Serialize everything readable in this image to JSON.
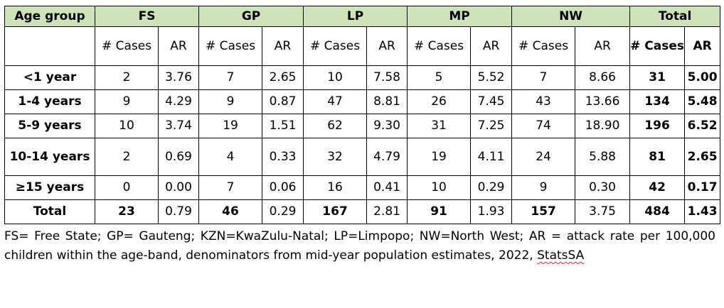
{
  "table": {
    "header": {
      "age_group": "Age group",
      "provinces": [
        "FS",
        "GP",
        "LP",
        "MP",
        "NW"
      ],
      "total": "Total",
      "cases_label": "# Cases",
      "ar_label": "AR"
    },
    "rows": [
      {
        "label": "<1 year",
        "tall": false,
        "values": [
          "2",
          "3.76",
          "7",
          "2.65",
          "10",
          "7.58",
          "5",
          "5.52",
          "7",
          "8.66",
          "31",
          "5.00"
        ]
      },
      {
        "label": "1-4 years",
        "tall": false,
        "values": [
          "9",
          "4.29",
          "9",
          "0.87",
          "47",
          "8.81",
          "26",
          "7.45",
          "43",
          "13.66",
          "134",
          "5.48"
        ]
      },
      {
        "label": "5-9 years",
        "tall": false,
        "values": [
          "10",
          "3.74",
          "19",
          "1.51",
          "62",
          "9.30",
          "31",
          "7.25",
          "74",
          "18.90",
          "196",
          "6.52"
        ]
      },
      {
        "label": "10-14 years",
        "tall": true,
        "values": [
          "2",
          "0.69",
          "4",
          "0.33",
          "32",
          "4.79",
          "19",
          "4.11",
          "24",
          "5.88",
          "81",
          "2.65"
        ]
      },
      {
        "label": "≥15 years",
        "tall": false,
        "values": [
          "0",
          "0.00",
          "7",
          "0.06",
          "16",
          "0.41",
          "10",
          "0.29",
          "9",
          "0.30",
          "42",
          "0.17"
        ]
      },
      {
        "label": "Total",
        "tall": false,
        "values": [
          "23",
          "0.79",
          "46",
          "0.29",
          "167",
          "2.81",
          "91",
          "1.93",
          "157",
          "3.75",
          "484",
          "1.43"
        ]
      }
    ]
  },
  "footnote": {
    "text": "FS= Free State; GP= Gauteng; KZN=KwaZulu-Natal; LP=Limpopo; NW=North West; AR = attack rate per 100,000 children within the age-band, denominators from mid-year population estimates, 2022, ",
    "source": "StatsSA"
  }
}
